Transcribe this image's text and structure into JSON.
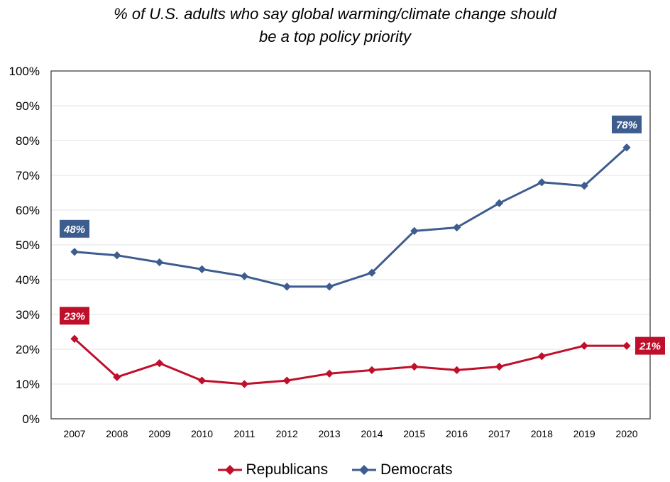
{
  "chart_data": {
    "type": "line",
    "title": "% of U.S. adults who say global warming/climate change should be a top policy priority",
    "title_lines": [
      "% of U.S. adults who say global warming/climate change should",
      "be a top policy priority"
    ],
    "xlabel": "",
    "ylabel": "",
    "x": [
      "2007",
      "2008",
      "2009",
      "2010",
      "2011",
      "2012",
      "2013",
      "2014",
      "2015",
      "2016",
      "2017",
      "2018",
      "2019",
      "2020"
    ],
    "ylim": [
      0,
      100
    ],
    "yticks": [
      "0%",
      "10%",
      "20%",
      "30%",
      "40%",
      "50%",
      "60%",
      "70%",
      "80%",
      "90%",
      "100%"
    ],
    "grid": true,
    "legend": "bottom",
    "series": [
      {
        "name": "Republicans",
        "color": "#c00f2b",
        "values": [
          23,
          12,
          16,
          11,
          10,
          11,
          13,
          14,
          15,
          14,
          15,
          18,
          21,
          21
        ],
        "labels": [
          {
            "index": 0,
            "text": "23%"
          },
          {
            "index": 13,
            "text": "21%"
          }
        ]
      },
      {
        "name": "Democrats",
        "color": "#3d5d8f",
        "values": [
          48,
          47,
          45,
          43,
          41,
          38,
          38,
          42,
          54,
          55,
          62,
          68,
          67,
          78
        ],
        "labels": [
          {
            "index": 0,
            "text": "48%"
          },
          {
            "index": 13,
            "text": "78%"
          }
        ]
      }
    ]
  }
}
